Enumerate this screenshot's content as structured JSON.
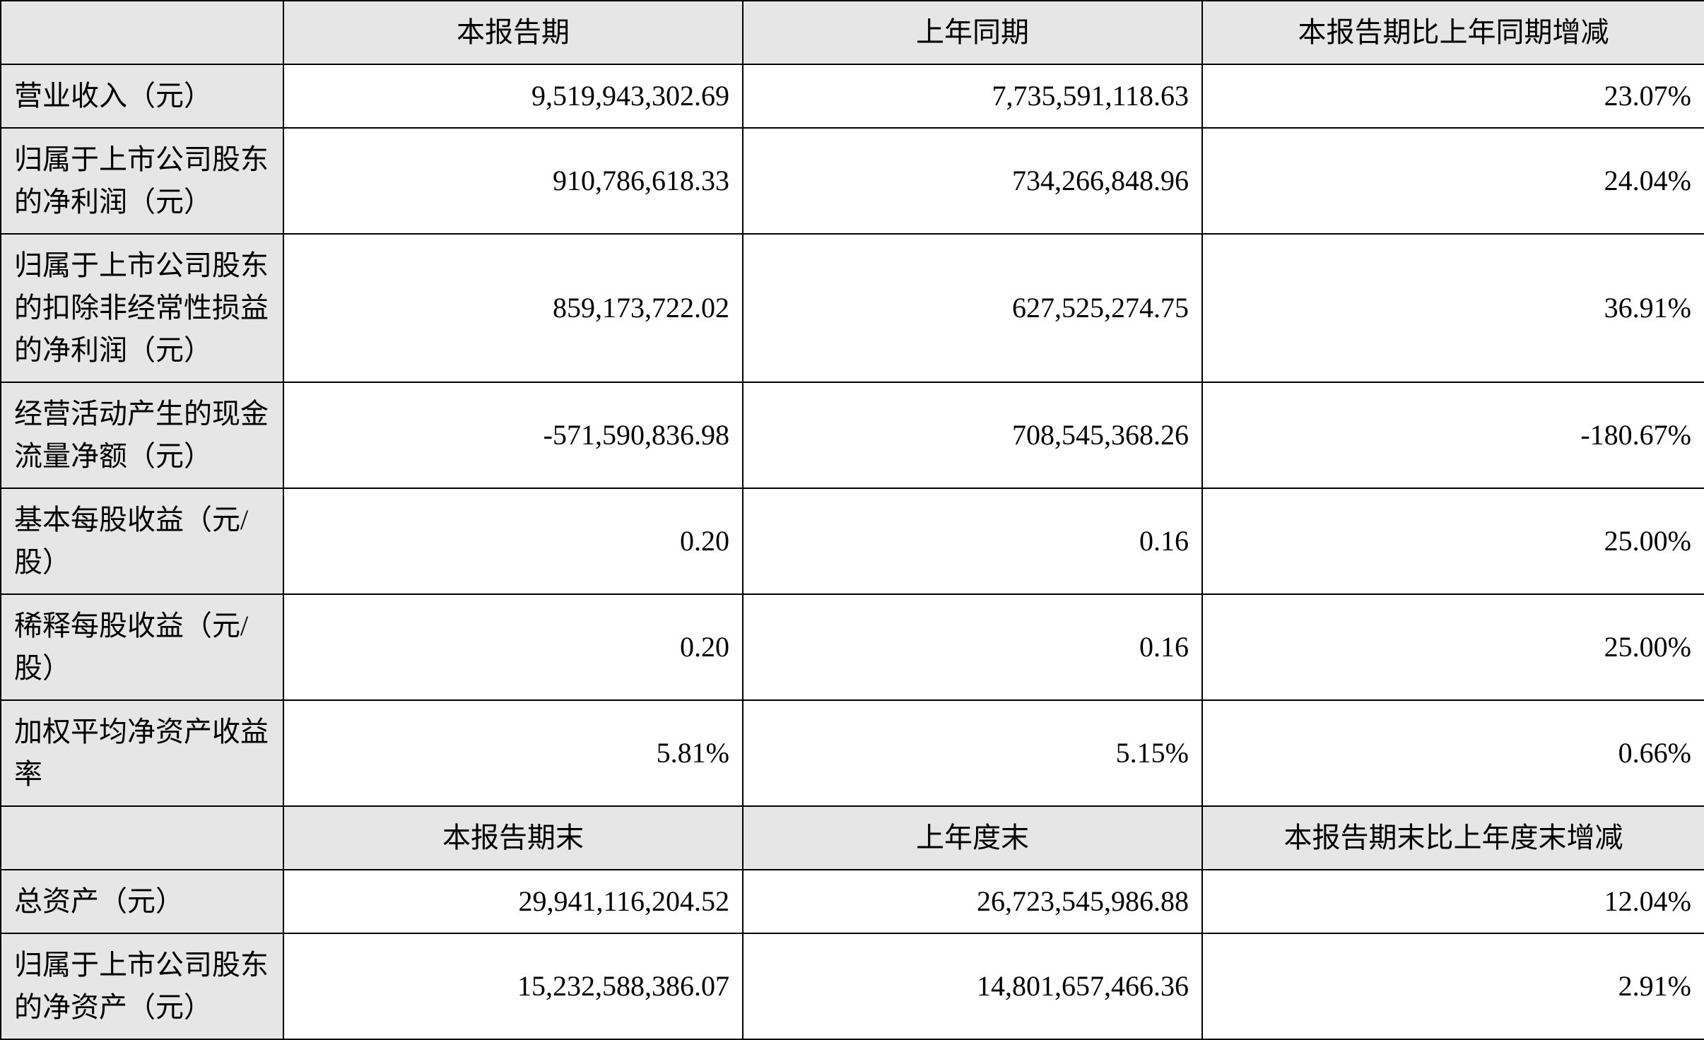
{
  "table": {
    "background_color": "#ffffff",
    "header_bg": "#e6e6e6",
    "border_color": "#000000",
    "font_family": "SimSun",
    "cell_font_size_pt": 30,
    "columns": {
      "blank": "",
      "current": "本报告期",
      "prior": "上年同期",
      "change": "本报告期比上年同期增减"
    },
    "section2_columns": {
      "blank": "",
      "current_end": "本报告期末",
      "prior_end": "上年度末",
      "change_end": "本报告期末比上年度末增减"
    },
    "rows": {
      "revenue": {
        "label": "营业收入（元）",
        "current": "9,519,943,302.69",
        "prior": "7,735,591,118.63",
        "change": "23.07%"
      },
      "net_profit_parent": {
        "label": "归属于上市公司股东的净利润（元）",
        "current": "910,786,618.33",
        "prior": "734,266,848.96",
        "change": "24.04%"
      },
      "net_profit_ex_nr": {
        "label": "归属于上市公司股东的扣除非经常性损益的净利润（元）",
        "current": "859,173,722.02",
        "prior": "627,525,274.75",
        "change": "36.91%"
      },
      "op_cash_flow": {
        "label": "经营活动产生的现金流量净额（元）",
        "current": "-571,590,836.98",
        "prior": "708,545,368.26",
        "change": "-180.67%"
      },
      "basic_eps": {
        "label": "基本每股收益（元/股）",
        "current": "0.20",
        "prior": "0.16",
        "change": "25.00%"
      },
      "diluted_eps": {
        "label": "稀释每股收益（元/股）",
        "current": "0.20",
        "prior": "0.16",
        "change": "25.00%"
      },
      "roe": {
        "label": "加权平均净资产收益率",
        "current": "5.81%",
        "prior": "5.15%",
        "change": "0.66%"
      },
      "total_assets": {
        "label": "总资产（元）",
        "current": "29,941,116,204.52",
        "prior": "26,723,545,986.88",
        "change": "12.04%"
      },
      "net_assets_parent": {
        "label": "归属于上市公司股东的净资产（元）",
        "current": "15,232,588,386.07",
        "prior": "14,801,657,466.36",
        "change": "2.91%"
      }
    }
  }
}
